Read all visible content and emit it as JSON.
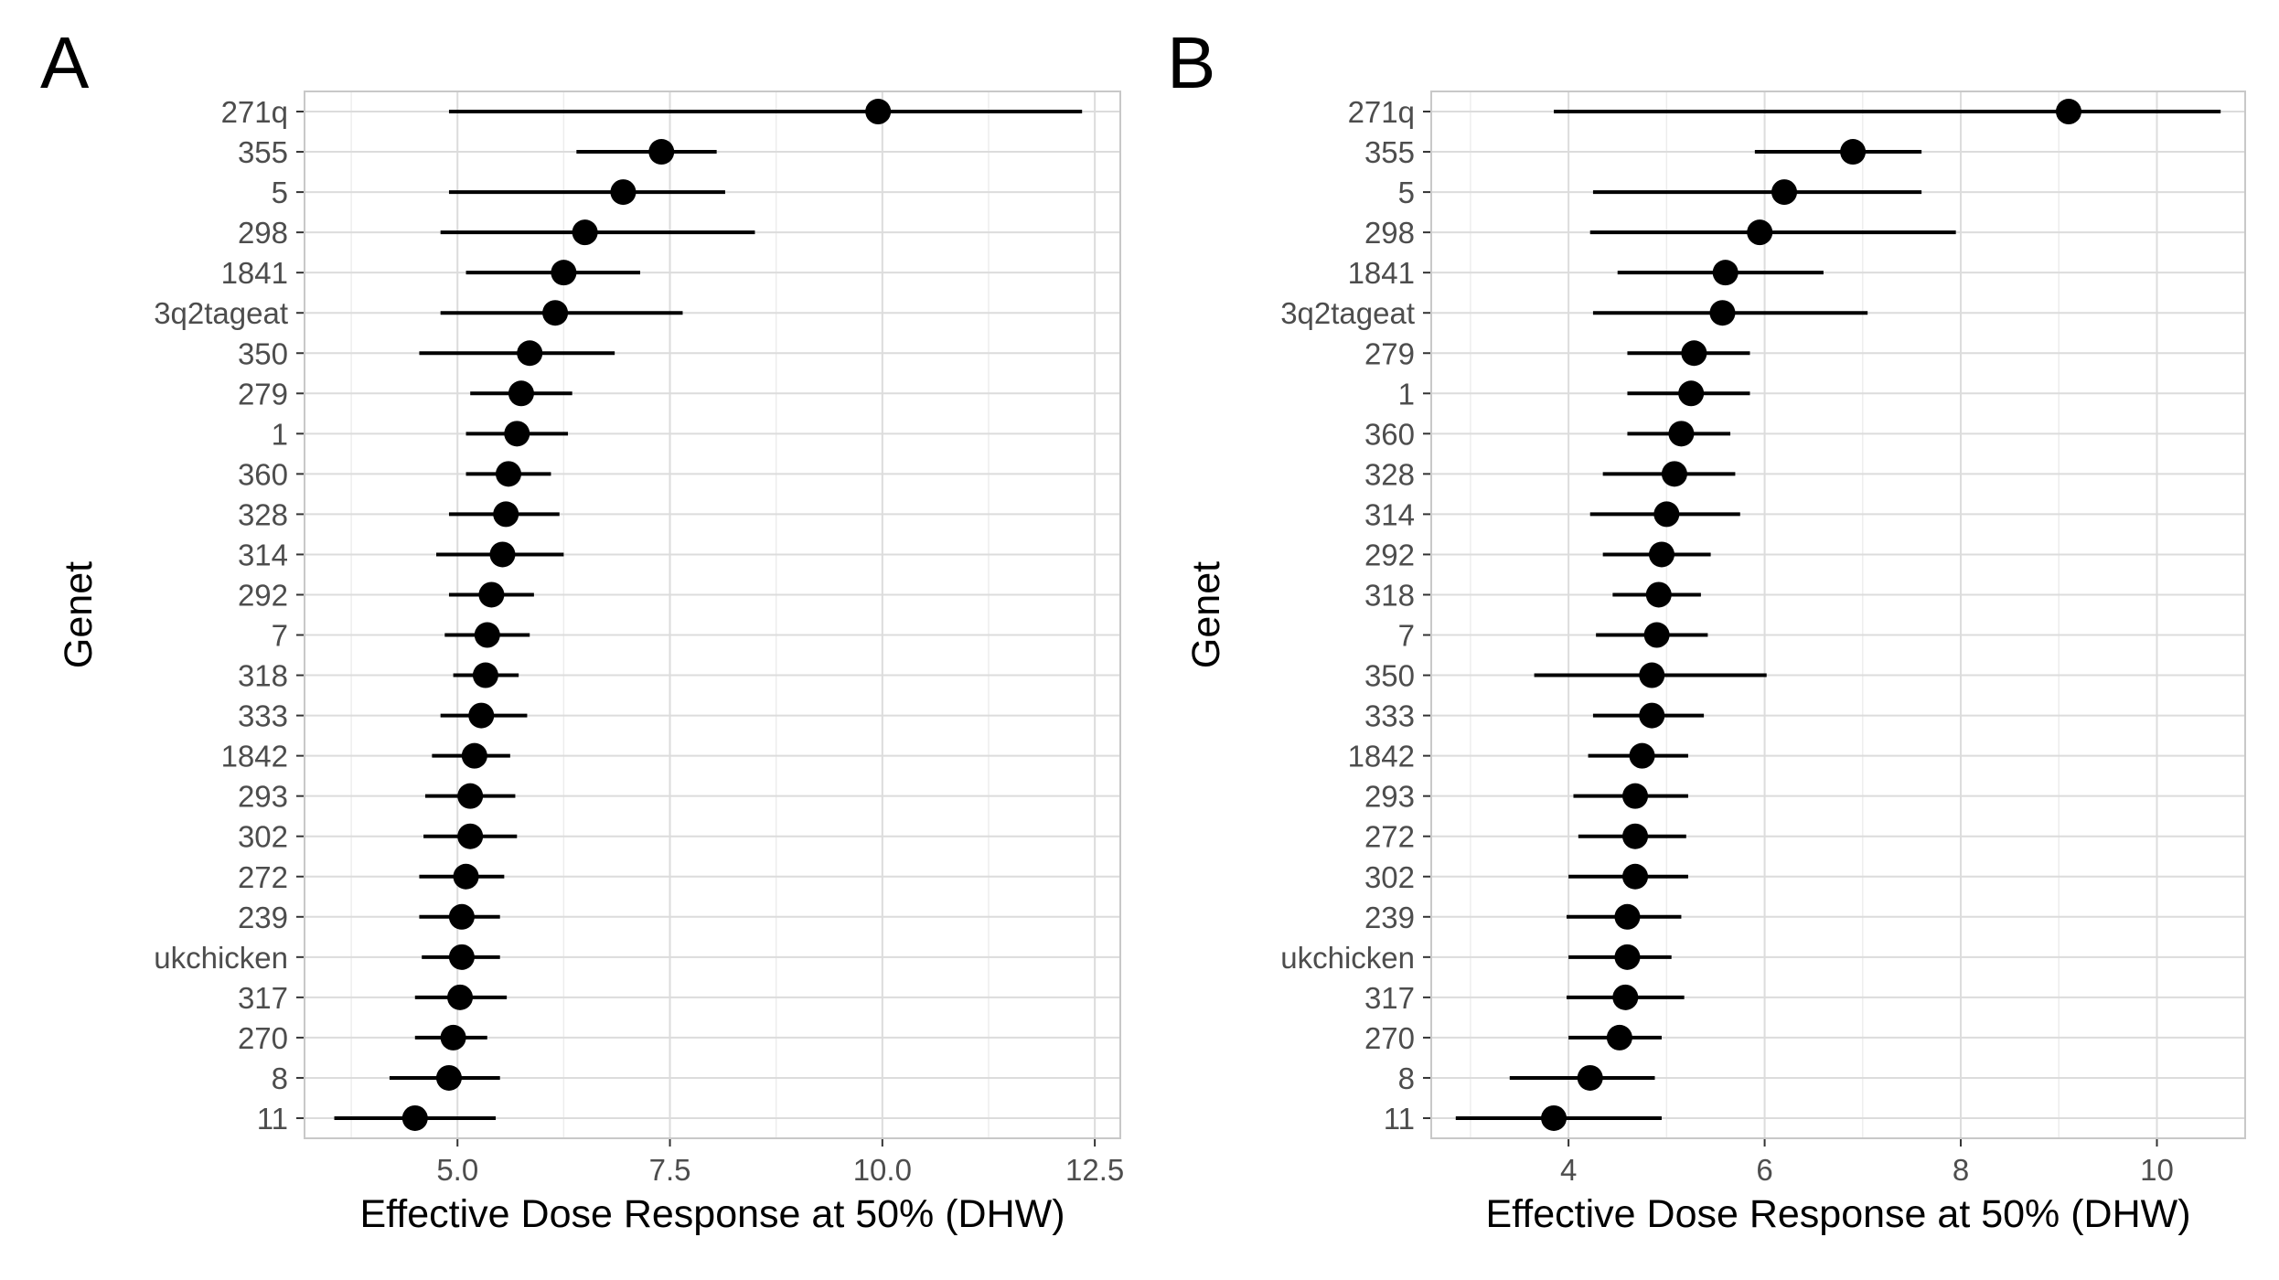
{
  "chart_data": [
    {
      "panel": "A",
      "type": "scatter",
      "xlabel": "Effective Dose Response at 50% (DHW)",
      "ylabel": "Genet",
      "xlim": [
        3.2,
        12.8
      ],
      "xticks": [
        5.0,
        7.5,
        10.0,
        12.5
      ],
      "xtick_labels": [
        "5.0",
        "7.5",
        "10.0",
        "12.5"
      ],
      "grid": true,
      "points": [
        {
          "genet": "271q",
          "value": 9.95,
          "lower": 4.9,
          "upper": 12.35
        },
        {
          "genet": "355",
          "value": 7.4,
          "lower": 6.4,
          "upper": 8.05
        },
        {
          "genet": "5",
          "value": 6.95,
          "lower": 4.9,
          "upper": 8.15
        },
        {
          "genet": "298",
          "value": 6.5,
          "lower": 4.8,
          "upper": 8.5
        },
        {
          "genet": "1841",
          "value": 6.25,
          "lower": 5.1,
          "upper": 7.15
        },
        {
          "genet": "3q2tageat",
          "value": 6.15,
          "lower": 4.8,
          "upper": 7.65
        },
        {
          "genet": "350",
          "value": 5.85,
          "lower": 4.55,
          "upper": 6.85
        },
        {
          "genet": "279",
          "value": 5.75,
          "lower": 5.15,
          "upper": 6.35
        },
        {
          "genet": "1",
          "value": 5.7,
          "lower": 5.1,
          "upper": 6.3
        },
        {
          "genet": "360",
          "value": 5.6,
          "lower": 5.1,
          "upper": 6.1
        },
        {
          "genet": "328",
          "value": 5.57,
          "lower": 4.9,
          "upper": 6.2
        },
        {
          "genet": "314",
          "value": 5.53,
          "lower": 4.75,
          "upper": 6.25
        },
        {
          "genet": "292",
          "value": 5.4,
          "lower": 4.9,
          "upper": 5.9
        },
        {
          "genet": "7",
          "value": 5.35,
          "lower": 4.85,
          "upper": 5.85
        },
        {
          "genet": "318",
          "value": 5.33,
          "lower": 4.95,
          "upper": 5.72
        },
        {
          "genet": "333",
          "value": 5.28,
          "lower": 4.8,
          "upper": 5.82
        },
        {
          "genet": "1842",
          "value": 5.2,
          "lower": 4.7,
          "upper": 5.62
        },
        {
          "genet": "293",
          "value": 5.15,
          "lower": 4.62,
          "upper": 5.68
        },
        {
          "genet": "302",
          "value": 5.15,
          "lower": 4.6,
          "upper": 5.7
        },
        {
          "genet": "272",
          "value": 5.1,
          "lower": 4.55,
          "upper": 5.55
        },
        {
          "genet": "239",
          "value": 5.05,
          "lower": 4.55,
          "upper": 5.5
        },
        {
          "genet": "ukchicken",
          "value": 5.05,
          "lower": 4.58,
          "upper": 5.5
        },
        {
          "genet": "317",
          "value": 5.03,
          "lower": 4.5,
          "upper": 5.58
        },
        {
          "genet": "270",
          "value": 4.95,
          "lower": 4.5,
          "upper": 5.35
        },
        {
          "genet": "8",
          "value": 4.9,
          "lower": 4.2,
          "upper": 5.5
        },
        {
          "genet": "11",
          "value": 4.5,
          "lower": 3.55,
          "upper": 5.45
        }
      ]
    },
    {
      "panel": "B",
      "type": "scatter",
      "xlabel": "Effective Dose Response at 50% (DHW)",
      "ylabel": "Genet",
      "xlim": [
        2.6,
        10.9
      ],
      "xticks": [
        4,
        6,
        8,
        10
      ],
      "xtick_labels": [
        "4",
        "6",
        "8",
        "10"
      ],
      "grid": true,
      "points": [
        {
          "genet": "271q",
          "value": 9.1,
          "lower": 3.85,
          "upper": 10.65
        },
        {
          "genet": "355",
          "value": 6.9,
          "lower": 5.9,
          "upper": 7.6
        },
        {
          "genet": "5",
          "value": 6.2,
          "lower": 4.25,
          "upper": 7.6
        },
        {
          "genet": "298",
          "value": 5.95,
          "lower": 4.22,
          "upper": 7.95
        },
        {
          "genet": "1841",
          "value": 5.6,
          "lower": 4.5,
          "upper": 6.6
        },
        {
          "genet": "3q2tageat",
          "value": 5.57,
          "lower": 4.25,
          "upper": 7.05
        },
        {
          "genet": "279",
          "value": 5.28,
          "lower": 4.6,
          "upper": 5.85
        },
        {
          "genet": "1",
          "value": 5.25,
          "lower": 4.6,
          "upper": 5.85
        },
        {
          "genet": "360",
          "value": 5.15,
          "lower": 4.6,
          "upper": 5.65
        },
        {
          "genet": "328",
          "value": 5.08,
          "lower": 4.35,
          "upper": 5.7
        },
        {
          "genet": "314",
          "value": 5.0,
          "lower": 4.22,
          "upper": 5.75
        },
        {
          "genet": "292",
          "value": 4.95,
          "lower": 4.35,
          "upper": 5.45
        },
        {
          "genet": "318",
          "value": 4.92,
          "lower": 4.45,
          "upper": 5.35
        },
        {
          "genet": "7",
          "value": 4.9,
          "lower": 4.28,
          "upper": 5.42
        },
        {
          "genet": "350",
          "value": 4.85,
          "lower": 3.65,
          "upper": 6.02
        },
        {
          "genet": "333",
          "value": 4.85,
          "lower": 4.25,
          "upper": 5.38
        },
        {
          "genet": "1842",
          "value": 4.75,
          "lower": 4.2,
          "upper": 5.22
        },
        {
          "genet": "293",
          "value": 4.68,
          "lower": 4.05,
          "upper": 5.22
        },
        {
          "genet": "272",
          "value": 4.68,
          "lower": 4.1,
          "upper": 5.2
        },
        {
          "genet": "302",
          "value": 4.68,
          "lower": 4.0,
          "upper": 5.22
        },
        {
          "genet": "239",
          "value": 4.6,
          "lower": 3.98,
          "upper": 5.15
        },
        {
          "genet": "ukchicken",
          "value": 4.6,
          "lower": 4.0,
          "upper": 5.05
        },
        {
          "genet": "317",
          "value": 4.58,
          "lower": 3.98,
          "upper": 5.18
        },
        {
          "genet": "270",
          "value": 4.52,
          "lower": 4.0,
          "upper": 4.95
        },
        {
          "genet": "8",
          "value": 4.22,
          "lower": 3.4,
          "upper": 4.88
        },
        {
          "genet": "11",
          "value": 3.85,
          "lower": 2.85,
          "upper": 4.95
        }
      ]
    }
  ]
}
